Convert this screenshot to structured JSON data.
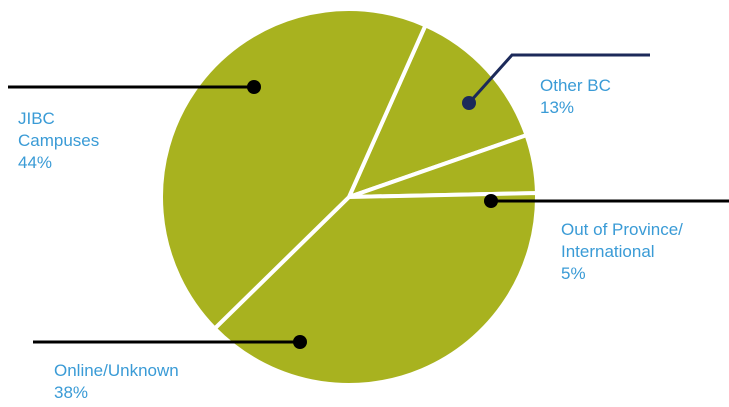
{
  "chart_data": {
    "type": "pie",
    "title": "",
    "slices": [
      {
        "label_lines": [
          "JIBC",
          "Campuses"
        ],
        "percent_label": "44%",
        "value": 44
      },
      {
        "label_lines": [
          "Other BC"
        ],
        "percent_label": "13%",
        "value": 13
      },
      {
        "label_lines": [
          "Out of Province/",
          "International"
        ],
        "percent_label": "5%",
        "value": 5
      },
      {
        "label_lines": [
          "Online/Unknown"
        ],
        "percent_label": "38%",
        "value": 38
      }
    ]
  },
  "colors": {
    "slice_fill": "#a8b21f",
    "slice_border": "#ffffff",
    "label_text": "#3a9bd6",
    "leader_line": "#000000",
    "leader_line_other_bc": "#1c2a5a"
  }
}
